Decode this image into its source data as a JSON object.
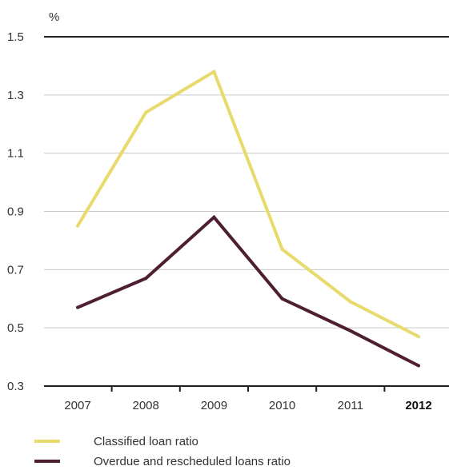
{
  "chart_data": {
    "type": "line",
    "unit_label": "%",
    "categories": [
      "2007",
      "2008",
      "2009",
      "2010",
      "2011",
      "2012"
    ],
    "highlight_category": "2012",
    "series": [
      {
        "name": "Classified loan ratio",
        "color": "#e8da6c",
        "values": [
          0.85,
          1.24,
          1.38,
          0.77,
          0.59,
          0.47
        ]
      },
      {
        "name": "Overdue and rescheduled loans ratio",
        "color": "#4e1f33",
        "values": [
          0.57,
          0.67,
          0.88,
          0.6,
          0.49,
          0.37
        ]
      }
    ],
    "y_ticks": [
      "0.3",
      "0.5",
      "0.7",
      "0.9",
      "1.1",
      "1.3",
      "1.5"
    ],
    "ylim": [
      0.3,
      1.5
    ],
    "grid": true,
    "legend_position": "bottom-left"
  }
}
